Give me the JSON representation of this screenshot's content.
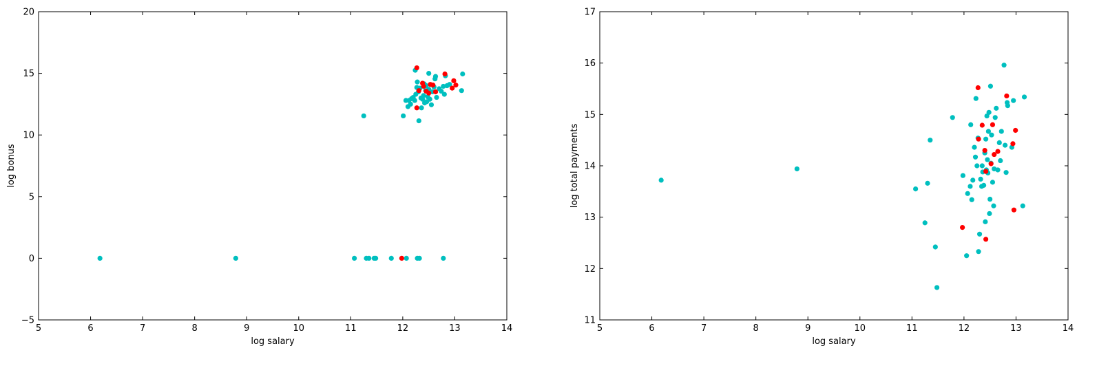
{
  "chart_data": [
    {
      "type": "scatter",
      "xlabel": "log salary",
      "ylabel": "log bonus",
      "xlim": [
        5,
        14
      ],
      "ylim": [
        -5,
        20
      ],
      "xticks": [
        5,
        6,
        7,
        8,
        9,
        10,
        11,
        12,
        13,
        14
      ],
      "yticks": [
        -5,
        0,
        5,
        10,
        15,
        20
      ],
      "grid": false,
      "colors": {
        "non_poi": "#00bfbf",
        "poi": "#ff0000"
      },
      "series": [
        {
          "color": "#00bfbf",
          "points": [
            [
              6.18,
              0
            ],
            [
              8.79,
              0
            ],
            [
              11.07,
              0
            ],
            [
              11.3,
              0
            ],
            [
              11.35,
              0
            ],
            [
              11.45,
              0
            ],
            [
              11.48,
              0
            ],
            [
              11.78,
              0
            ],
            [
              12.07,
              0
            ],
            [
              12.28,
              0
            ],
            [
              12.32,
              0
            ],
            [
              12.78,
              0
            ],
            [
              11.25,
              11.55
            ],
            [
              12.01,
              11.55
            ],
            [
              12.31,
              11.15
            ],
            [
              12.24,
              15.25
            ],
            [
              12.5,
              15.0
            ],
            [
              12.82,
              14.8
            ],
            [
              13.15,
              14.95
            ],
            [
              12.63,
              14.75
            ],
            [
              12.28,
              14.3
            ],
            [
              12.45,
              14.0
            ],
            [
              12.06,
              12.8
            ],
            [
              12.12,
              12.8
            ],
            [
              12.1,
              12.3
            ],
            [
              12.15,
              12.5
            ],
            [
              12.17,
              12.95
            ],
            [
              12.2,
              13.05
            ],
            [
              12.23,
              12.8
            ],
            [
              12.25,
              13.3
            ],
            [
              12.3,
              13.5
            ],
            [
              12.33,
              13.8
            ],
            [
              12.35,
              13.0
            ],
            [
              12.38,
              12.9
            ],
            [
              12.4,
              13.2
            ],
            [
              12.42,
              12.6
            ],
            [
              12.44,
              13.6
            ],
            [
              12.46,
              12.7
            ],
            [
              12.48,
              13.1
            ],
            [
              12.5,
              13.7
            ],
            [
              12.52,
              12.9
            ],
            [
              12.55,
              12.45
            ],
            [
              12.57,
              13.5
            ],
            [
              12.6,
              13.9
            ],
            [
              12.62,
              14.55
            ],
            [
              12.65,
              13.05
            ],
            [
              12.7,
              13.75
            ],
            [
              12.74,
              13.55
            ],
            [
              12.78,
              13.95
            ],
            [
              12.8,
              13.3
            ],
            [
              12.85,
              14.0
            ],
            [
              12.9,
              14.1
            ],
            [
              13.13,
              13.6
            ],
            [
              12.36,
              12.2
            ],
            [
              12.27,
              13.85
            ],
            [
              12.41,
              14.15
            ]
          ]
        },
        {
          "color": "#ff0000",
          "points": [
            [
              11.98,
              0
            ],
            [
              12.27,
              15.45
            ],
            [
              12.27,
              12.2
            ],
            [
              12.31,
              13.6
            ],
            [
              12.38,
              14.2
            ],
            [
              12.4,
              13.95
            ],
            [
              12.45,
              13.55
            ],
            [
              12.5,
              13.4
            ],
            [
              12.53,
              14.1
            ],
            [
              12.58,
              14.05
            ],
            [
              12.63,
              13.5
            ],
            [
              12.81,
              14.95
            ],
            [
              12.95,
              13.8
            ],
            [
              12.98,
              14.4
            ],
            [
              13.02,
              14.05
            ]
          ]
        }
      ]
    },
    {
      "type": "scatter",
      "xlabel": "log salary",
      "ylabel": "log total payments",
      "xlim": [
        5,
        14
      ],
      "ylim": [
        11,
        17
      ],
      "xticks": [
        5,
        6,
        7,
        8,
        9,
        10,
        11,
        12,
        13,
        14
      ],
      "yticks": [
        11,
        12,
        13,
        14,
        15,
        16,
        17
      ],
      "grid": false,
      "colors": {
        "non_poi": "#00bfbf",
        "poi": "#ff0000"
      },
      "series": [
        {
          "color": "#00bfbf",
          "points": [
            [
              6.18,
              13.72
            ],
            [
              8.79,
              13.94
            ],
            [
              11.07,
              13.55
            ],
            [
              11.3,
              13.66
            ],
            [
              11.35,
              14.5
            ],
            [
              11.25,
              12.89
            ],
            [
              11.45,
              12.42
            ],
            [
              11.48,
              11.63
            ],
            [
              11.78,
              14.94
            ],
            [
              11.98,
              13.81
            ],
            [
              12.05,
              12.25
            ],
            [
              12.07,
              13.46
            ],
            [
              12.12,
              13.6
            ],
            [
              12.15,
              13.34
            ],
            [
              12.17,
              13.72
            ],
            [
              12.13,
              14.8
            ],
            [
              12.2,
              14.36
            ],
            [
              12.22,
              14.17
            ],
            [
              12.23,
              15.31
            ],
            [
              12.25,
              14.0
            ],
            [
              12.27,
              14.54
            ],
            [
              12.28,
              12.33
            ],
            [
              12.3,
              12.67
            ],
            [
              12.32,
              13.74
            ],
            [
              12.34,
              13.6
            ],
            [
              12.35,
              14.0
            ],
            [
              12.36,
              13.88
            ],
            [
              12.38,
              13.62
            ],
            [
              12.4,
              14.25
            ],
            [
              12.41,
              12.91
            ],
            [
              12.42,
              14.52
            ],
            [
              12.43,
              13.92
            ],
            [
              12.44,
              14.97
            ],
            [
              12.45,
              14.12
            ],
            [
              12.46,
              13.86
            ],
            [
              12.47,
              14.67
            ],
            [
              12.48,
              15.04
            ],
            [
              12.49,
              13.07
            ],
            [
              12.5,
              13.35
            ],
            [
              12.51,
              15.55
            ],
            [
              12.52,
              14.05
            ],
            [
              12.53,
              14.6
            ],
            [
              12.55,
              13.68
            ],
            [
              12.57,
              13.22
            ],
            [
              12.58,
              13.94
            ],
            [
              12.6,
              14.94
            ],
            [
              12.62,
              15.12
            ],
            [
              12.65,
              13.92
            ],
            [
              12.68,
              14.45
            ],
            [
              12.7,
              14.1
            ],
            [
              12.72,
              14.67
            ],
            [
              12.77,
              15.96
            ],
            [
              12.79,
              14.4
            ],
            [
              12.81,
              13.87
            ],
            [
              12.83,
              15.23
            ],
            [
              12.84,
              15.17
            ],
            [
              12.92,
              14.36
            ],
            [
              12.95,
              15.27
            ],
            [
              13.13,
              13.22
            ],
            [
              13.16,
              15.34
            ]
          ]
        },
        {
          "color": "#ff0000",
          "points": [
            [
              11.97,
              12.8
            ],
            [
              12.27,
              15.52
            ],
            [
              12.28,
              14.52
            ],
            [
              12.35,
              14.79
            ],
            [
              12.4,
              14.3
            ],
            [
              12.42,
              13.89
            ],
            [
              12.42,
              12.57
            ],
            [
              12.52,
              14.04
            ],
            [
              12.55,
              14.8
            ],
            [
              12.58,
              14.22
            ],
            [
              12.65,
              14.28
            ],
            [
              12.82,
              15.36
            ],
            [
              12.94,
              14.43
            ],
            [
              12.96,
              13.14
            ],
            [
              12.99,
              14.69
            ]
          ]
        }
      ]
    }
  ]
}
